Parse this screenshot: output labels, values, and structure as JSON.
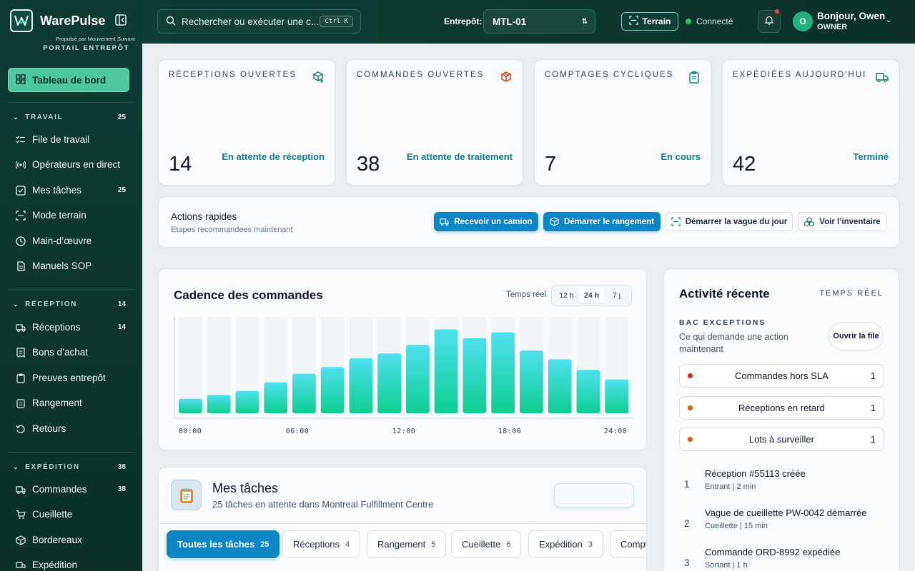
{
  "brand": {
    "name": "WarePulse",
    "powered_by": "Propulsé par Mouvement Suivant",
    "portal": "PORTAIL ENTREPÔT"
  },
  "sidebar": {
    "active_item": "Tableau de bord",
    "sections": [
      {
        "title": "TRAVAIL",
        "count": "25",
        "items": [
          {
            "label": "File de travail",
            "count": "",
            "icon": "list-checks-icon"
          },
          {
            "label": "Opérateurs en direct",
            "count": "",
            "icon": "radio-icon"
          },
          {
            "label": "Mes tâches",
            "count": "25",
            "icon": "checkbox-icon"
          },
          {
            "label": "Mode terrain",
            "count": "",
            "icon": "scan-icon"
          },
          {
            "label": "Main-d’œuvre",
            "count": "",
            "icon": "clock-icon"
          },
          {
            "label": "Manuels SOP",
            "count": "",
            "icon": "document-icon"
          }
        ]
      },
      {
        "title": "RÉCEPTION",
        "count": "14",
        "items": [
          {
            "label": "Réceptions",
            "count": "14",
            "icon": "truck-icon"
          },
          {
            "label": "Bons d’achat",
            "count": "",
            "icon": "receipt-icon"
          },
          {
            "label": "Preuves entrepôt",
            "count": "",
            "icon": "clipboard-icon"
          },
          {
            "label": "Rangement",
            "count": "",
            "icon": "clipboard-icon"
          },
          {
            "label": "Retours",
            "count": "",
            "icon": "rotate-icon"
          }
        ]
      },
      {
        "title": "EXPÉDITION",
        "count": "38",
        "items": [
          {
            "label": "Commandes",
            "count": "38",
            "icon": "truck-icon"
          },
          {
            "label": "Cueillette",
            "count": "",
            "icon": "cart-icon"
          },
          {
            "label": "Bordereaux",
            "count": "",
            "icon": "box-icon"
          },
          {
            "label": "Expédition",
            "count": "",
            "icon": "truck-icon"
          }
        ]
      }
    ]
  },
  "topbar": {
    "search_placeholder": "Rechercher ou exécuter une c...",
    "search_shortcut": "Ctrl K",
    "warehouse_label": "Entrepôt:",
    "warehouse_value": "MTL-01",
    "terrain_button": "Terrain",
    "status": "Connecté",
    "greeting": "Bonjour, Owen",
    "role": "OWNER",
    "avatar_initial": "O"
  },
  "kpis": [
    {
      "label": "RÉCEPTIONS OUVERTES",
      "value": "14",
      "note": "En attente de réception",
      "icon": "package-plus-icon",
      "color": "#0f7a5c"
    },
    {
      "label": "COMMANDES OUVERTES",
      "value": "38",
      "note": "En attente de traitement",
      "icon": "package-icon",
      "color": "#c2410c"
    },
    {
      "label": "COMPTAGES CYCLIQUES",
      "value": "7",
      "note": "En cours",
      "icon": "clipboard-list-icon",
      "color": "#0e7d8b"
    },
    {
      "label": "EXPÉDIÉES AUJOURD'HUI",
      "value": "42",
      "note": "Terminé",
      "icon": "truck-icon",
      "color": "#0f7a5c"
    }
  ],
  "quick_actions": {
    "title": "Actions rapides",
    "subtitle": "Etapes recommandees maintenant",
    "buttons": [
      {
        "label": "Recevoir un camion",
        "style": "primary",
        "icon": "truck-icon"
      },
      {
        "label": "Démarrer le rangement",
        "style": "primary",
        "icon": "package-icon"
      },
      {
        "label": "Démarrer la vague du jour",
        "style": "secondary",
        "icon": "scan-icon"
      },
      {
        "label": "Voir l’inventaire",
        "style": "secondary",
        "icon": "boxes-icon"
      }
    ]
  },
  "cadence": {
    "title": "Cadence des commandes",
    "realtime_label": "Temps réel",
    "ranges": [
      "12 h",
      "24 h",
      "7 j"
    ],
    "selected_range": "24 h"
  },
  "chart_data": {
    "type": "bar",
    "title": "Cadence des commandes",
    "x_tick_labels": [
      "00:00",
      "06:00",
      "12:00",
      "18:00",
      "24:00"
    ],
    "categories": [
      "1",
      "2",
      "3",
      "4",
      "5",
      "6",
      "7",
      "8",
      "9",
      "10",
      "11",
      "12",
      "13",
      "14",
      "15",
      "16"
    ],
    "values": [
      15,
      19,
      23,
      32,
      41,
      48,
      57,
      62,
      71,
      87,
      78,
      84,
      65,
      56,
      45,
      35
    ],
    "ylim": [
      0,
      100
    ],
    "grid": false,
    "bar_gradient": [
      "#4fe0f0",
      "#0ccf8f"
    ]
  },
  "activity": {
    "title": "Activité récente",
    "realtime": "TEMPS RÉEL",
    "bac_title": "BAC EXCEPTIONS",
    "bac_desc": "Ce qui demande une action maintenant",
    "open_queue": "Ouvrir la file",
    "exceptions": [
      {
        "label": "Commandes hors SLA",
        "count": "1",
        "color": "#dc2626"
      },
      {
        "label": "Réceptions en retard",
        "count": "1",
        "color": "#ea580c"
      },
      {
        "label": "Lots à surveiller",
        "count": "1",
        "color": "#ea580c"
      }
    ],
    "feed": [
      {
        "index": "1",
        "title": "Réception #55113 créée",
        "meta": "Entrant | 2 min"
      },
      {
        "index": "2",
        "title": "Vague de cueillette PW-0042 démarrée",
        "meta": "Cueillette | 15 min"
      },
      {
        "index": "3",
        "title": "Commande ORD-8992 expédiée",
        "meta": "Sortant | 1 h"
      }
    ]
  },
  "tasks": {
    "title": "Mes tâches",
    "pending_count": "25 tâches en attente",
    "location_prefix": "dans",
    "location": "Montreal Fulfillment Centre",
    "tabs": [
      {
        "label": "Toutes les tâches",
        "count": "25"
      },
      {
        "label": "Réceptions",
        "count": "4"
      },
      {
        "label": "Rangement",
        "count": "5"
      },
      {
        "label": "Cueillette",
        "count": "6"
      },
      {
        "label": "Expédition",
        "count": "3"
      },
      {
        "label": "Compt",
        "count": ""
      }
    ]
  }
}
